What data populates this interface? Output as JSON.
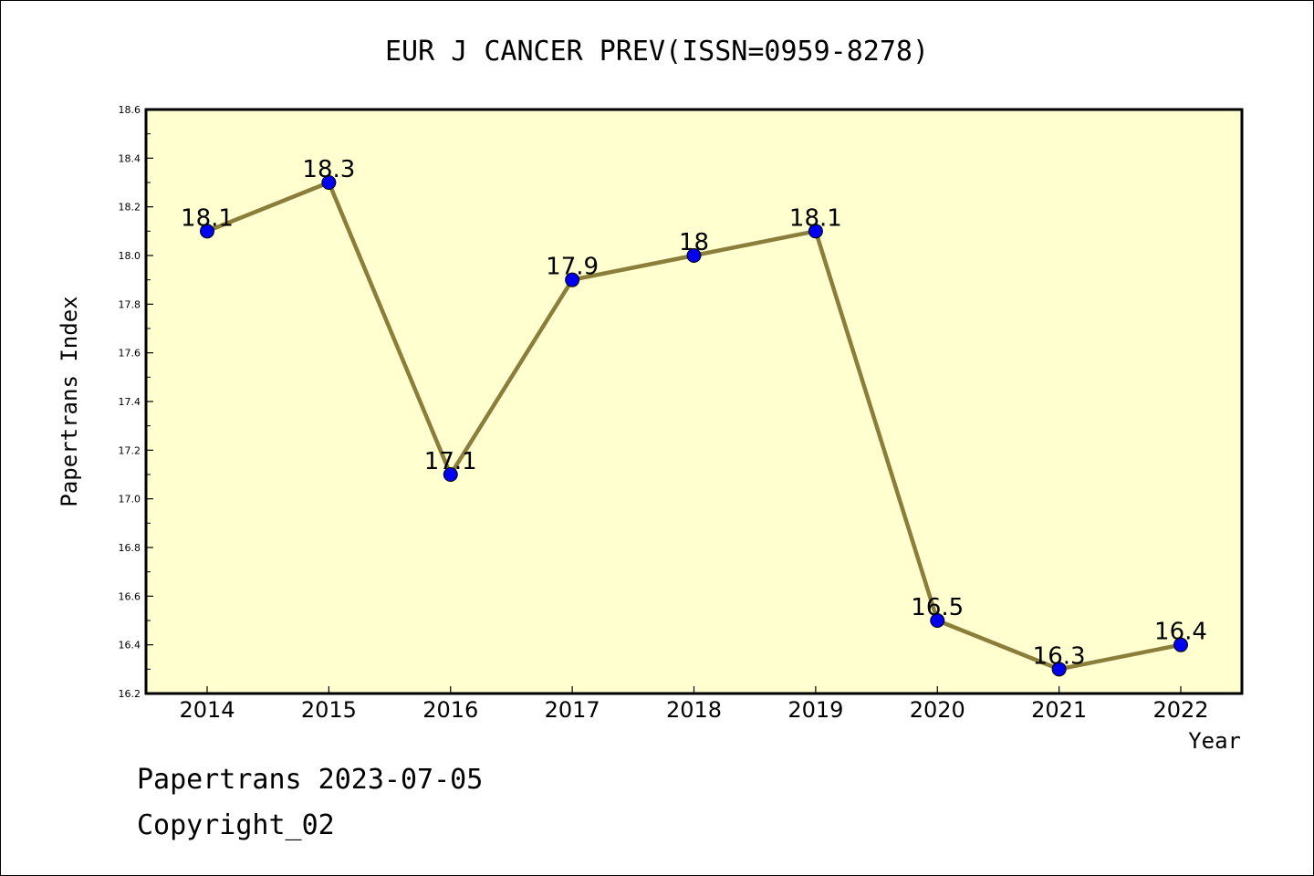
{
  "chart_data": {
    "type": "line",
    "title": "EUR J CANCER PREV(ISSN=0959-8278)",
    "xlabel": "Year",
    "ylabel": "Papertrans Index",
    "categories": [
      "2014",
      "2015",
      "2016",
      "2017",
      "2018",
      "2019",
      "2020",
      "2021",
      "2022"
    ],
    "series": [
      {
        "values": [
          18.1,
          18.3,
          17.1,
          17.9,
          18.0,
          18.1,
          16.5,
          16.3,
          16.4
        ],
        "labels": [
          "18.1",
          "18.3",
          "17.1",
          "17.9",
          "18",
          "18.1",
          "16.5",
          "16.3",
          "16.4"
        ]
      }
    ],
    "ylim": [
      16.2,
      18.6
    ],
    "yticks": [
      "16.2",
      "16.4",
      "16.6",
      "16.8",
      "17.0",
      "17.2",
      "17.4",
      "17.6",
      "17.8",
      "18.0",
      "18.2",
      "18.4",
      "18.6"
    ],
    "grid": false,
    "colors": {
      "plot_background": "#ffffd0",
      "line": "#8b7d3a",
      "marker": "#0000ee"
    }
  },
  "footer": {
    "line1": "Papertrans 2023-07-05",
    "line2": "Copyright_02"
  }
}
